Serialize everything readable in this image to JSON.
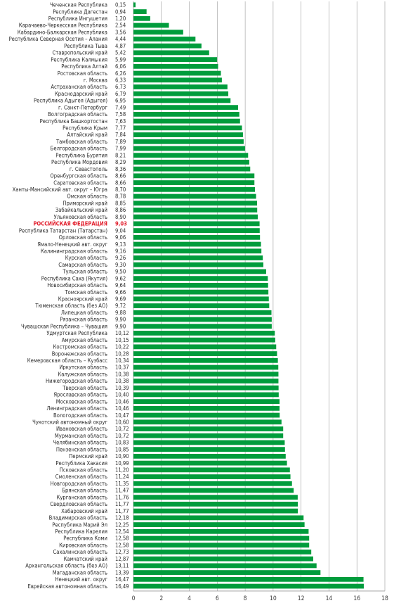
{
  "chart_data": {
    "type": "bar",
    "orientation": "horizontal",
    "xlim": [
      0,
      18
    ],
    "xticks": [
      0,
      2,
      4,
      6,
      8,
      10,
      12,
      14,
      16,
      18
    ],
    "grid": true,
    "bar_color": "#009c3c",
    "highlight_color": "#e11c2a",
    "highlight_category": "РОССИЙСКАЯ ФЕДЕРАЦИЯ",
    "categories": [
      "Чеченская Республика",
      "Республика Дагестан",
      "Республика Ингушетия",
      "Карачаево-Черкесская Республика",
      "Кабардино-Балкарская Республика",
      "Республика Северная Осетия – Алания",
      "Республика Тыва",
      "Ставропольский край",
      "Республика Калмыкия",
      "Республика Алтай",
      "Ростовская область",
      "г. Москва",
      "Астраханская область",
      "Краснодарский край",
      "Республика Адыгея (Адыгея)",
      "г. Санкт-Петербург",
      "Волгоградская область",
      "Республика Башкортостан",
      "Республика Крым",
      "Алтайский край",
      "Тамбовская область",
      "Белгородская область",
      "Республика Бурятия",
      "Республика Мордовия",
      "г. Севастополь",
      "Оренбургская область",
      "Саратовская область",
      "Ханты-Мансийский авт. округ – Югра",
      "Омская область",
      "Приморский край",
      "Забайкальский край",
      "Ульяновская область",
      "РОССИЙСКАЯ ФЕДЕРАЦИЯ",
      "Республика Татарстан (Татарстан)",
      "Орловская область",
      "Ямало-Ненецкий авт. округ",
      "Калининградская область",
      "Курская область",
      "Самарская область",
      "Тульская область",
      "Республика Саха (Якутия)",
      "Новосибирская область",
      "Томская область",
      "Красноярский край",
      "Тюменская область (без АО)",
      "Липецкая область",
      "Рязанская область",
      "Чувашская Республика – Чувашия",
      "Удмуртская Республика",
      "Амурская область",
      "Костромская область",
      "Воронежская область",
      "Кемеровская область – Кузбасс",
      "Иркутская область",
      "Калужская область",
      "Нижегородская область",
      "Тверская область",
      "Ярославская область",
      "Московская область",
      "Ленинградская область",
      "Вологодская область",
      "Чукотский автономный округ",
      "Ивановская область",
      "Мурманская область",
      "Челябинская область",
      "Пензенская область",
      "Пермский край",
      "Республика Хакасия",
      "Псковская область",
      "Смоленская область",
      "Новгородская область",
      "Брянская область",
      "Курганская область",
      "Свердловская область",
      "Хабаровский край",
      "Владимирская область",
      "Республика Марий Эл",
      "Республика Карелия",
      "Республика Коми",
      "Кировская область",
      "Сахалинская область",
      "Камчатский край",
      "Архангельская область (без АО)",
      "Магаданская область",
      "Ненецкий авт. округ",
      "Еврейская автономная область"
    ],
    "labels": [
      "0,15",
      "0,94",
      "1,20",
      "2,54",
      "3,56",
      "4,44",
      "4,87",
      "5,42",
      "5,99",
      "6,06",
      "6,26",
      "6,33",
      "6,73",
      "6,79",
      "6,95",
      "7,49",
      "7,58",
      "7,63",
      "7,77",
      "7,84",
      "7,89",
      "7,99",
      "8,21",
      "8,29",
      "8,36",
      "8,66",
      "8,66",
      "8,70",
      "8,78",
      "8,85",
      "8,86",
      "8,90",
      "9,03",
      "9,04",
      "9,06",
      "9,13",
      "9,16",
      "9,26",
      "9,30",
      "9,50",
      "9,62",
      "9,64",
      "9,66",
      "9,69",
      "9,72",
      "9,88",
      "9,90",
      "9,90",
      "10,12",
      "10,15",
      "10,22",
      "10,28",
      "10,34",
      "10,37",
      "10,38",
      "10,38",
      "10,39",
      "10,40",
      "10,46",
      "10,46",
      "10,47",
      "10,60",
      "10,72",
      "10,72",
      "10,83",
      "10,85",
      "10,90",
      "10,99",
      "11,20",
      "11,24",
      "11,35",
      "11,47",
      "11,76",
      "11,77",
      "11,77",
      "12,18",
      "12,25",
      "12,54",
      "12,58",
      "12,58",
      "12,73",
      "12,87",
      "13,11",
      "13,39",
      "16,47",
      "16,49"
    ],
    "values": [
      0.15,
      0.94,
      1.2,
      2.54,
      3.56,
      4.44,
      4.87,
      5.42,
      5.99,
      6.06,
      6.26,
      6.33,
      6.73,
      6.79,
      6.95,
      7.49,
      7.58,
      7.63,
      7.77,
      7.84,
      7.89,
      7.99,
      8.21,
      8.29,
      8.36,
      8.66,
      8.66,
      8.7,
      8.78,
      8.85,
      8.86,
      8.9,
      9.03,
      9.04,
      9.06,
      9.13,
      9.16,
      9.26,
      9.3,
      9.5,
      9.62,
      9.64,
      9.66,
      9.69,
      9.72,
      9.88,
      9.9,
      9.9,
      10.12,
      10.15,
      10.22,
      10.28,
      10.34,
      10.37,
      10.38,
      10.38,
      10.39,
      10.4,
      10.46,
      10.46,
      10.47,
      10.6,
      10.72,
      10.72,
      10.83,
      10.85,
      10.9,
      10.99,
      11.2,
      11.24,
      11.35,
      11.47,
      11.76,
      11.77,
      11.77,
      12.18,
      12.25,
      12.54,
      12.58,
      12.58,
      12.73,
      12.87,
      13.11,
      13.39,
      16.47,
      16.49
    ]
  }
}
